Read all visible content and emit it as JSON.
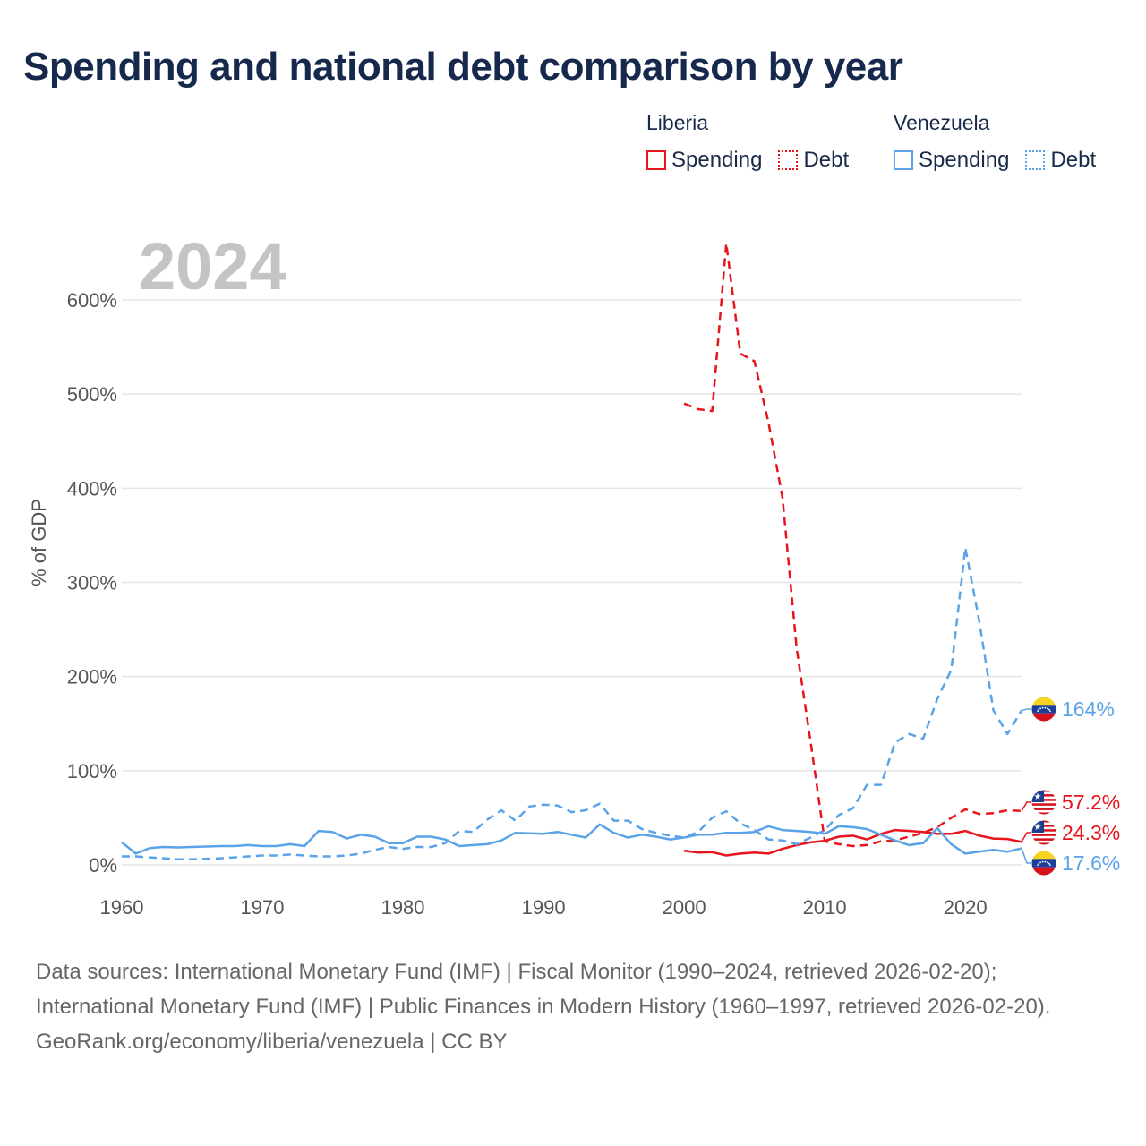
{
  "title": "Spending and national debt comparison by year",
  "legend": {
    "groups": [
      {
        "name": "Liberia",
        "color": "#e8141c",
        "spending_label": "Spending",
        "debt_label": "Debt"
      },
      {
        "name": "Venezuela",
        "color": "#5aa3e8",
        "spending_label": "Spending",
        "debt_label": "Debt"
      }
    ]
  },
  "chart_data": {
    "type": "line",
    "year_label": "2024",
    "ylabel": "% of GDP",
    "xlim": [
      1960,
      2024
    ],
    "ylim": [
      0,
      600
    ],
    "x_ticks": [
      1960,
      1970,
      1980,
      1990,
      2000,
      2010,
      2020
    ],
    "x_tick_labels": [
      "1960",
      "1970",
      "1980",
      "1990",
      "2000",
      "2010",
      "2020"
    ],
    "y_ticks": [
      0,
      100,
      200,
      300,
      400,
      500,
      600
    ],
    "y_tick_labels": [
      "0%",
      "100%",
      "200%",
      "300%",
      "400%",
      "500%",
      "600%"
    ],
    "series": [
      {
        "name": "Liberia Spending",
        "country": "Liberia",
        "kind": "spending",
        "color": "#e8141c",
        "dash": "solid",
        "start": 2000,
        "values": [
          15,
          13,
          13.5,
          10,
          12,
          13,
          12,
          17,
          21,
          24,
          25.5,
          30,
          31,
          27,
          33,
          37,
          36,
          35,
          33,
          33,
          36,
          31,
          28,
          27.5,
          24.3
        ],
        "end_label": "24.3%",
        "flag": "liberia"
      },
      {
        "name": "Liberia Debt",
        "country": "Liberia",
        "kind": "debt",
        "color": "#e8141c",
        "dash": "dashed",
        "start": 2000,
        "values": [
          490,
          484,
          482,
          660,
          543,
          535,
          470,
          390,
          230,
          130,
          25,
          22,
          20,
          21,
          25,
          26,
          30,
          34,
          40,
          50,
          59,
          54,
          55,
          58,
          57.2
        ],
        "end_label": "57.2%",
        "flag": "liberia"
      },
      {
        "name": "Venezuela Spending",
        "country": "Venezuela",
        "kind": "spending",
        "color": "#5aa3e8",
        "dash": "solid",
        "start": 1960,
        "values": [
          24,
          12,
          18,
          19,
          18.5,
          19,
          19.5,
          20,
          20,
          21,
          20,
          20,
          22,
          20,
          36,
          35,
          28,
          32,
          30,
          23,
          23,
          30,
          30,
          27,
          20,
          21,
          22,
          26,
          34,
          33.5,
          33,
          35,
          32,
          29,
          43,
          34,
          29,
          32,
          30,
          27,
          29,
          32,
          32,
          34,
          34,
          35,
          41,
          37,
          36,
          35,
          33,
          41,
          40,
          38,
          32,
          26,
          21,
          23,
          39,
          22,
          12,
          14,
          16,
          14,
          17.6
        ],
        "end_label": "17.6%",
        "flag": "venezuela"
      },
      {
        "name": "Venezuela Debt",
        "country": "Venezuela",
        "kind": "debt",
        "color": "#5aa3e8",
        "dash": "dashed",
        "start": 1960,
        "values": [
          9,
          9,
          8,
          7,
          6,
          6,
          6.5,
          7,
          8,
          9,
          10,
          10,
          11,
          10,
          9,
          9,
          10,
          12,
          16,
          19,
          17,
          19,
          19,
          23,
          36,
          35,
          48,
          58,
          47,
          62,
          64,
          63,
          56,
          58,
          65,
          47,
          47,
          38,
          34,
          31,
          29,
          35,
          50,
          57,
          44,
          37,
          27,
          26,
          22,
          29,
          37,
          53,
          60,
          85,
          85,
          130,
          139,
          134,
          176,
          207,
          337,
          258,
          164,
          139,
          164
        ],
        "end_label": "164%",
        "flag": "venezuela"
      }
    ]
  },
  "footer": {
    "sources": "Data sources: International Monetary Fund (IMF) | Fiscal Monitor (1990–2024, retrieved 2026-02-20); International Monetary Fund (IMF) | Public Finances in Modern History (1960–1997, retrieved 2026-02-20).",
    "credit": "GeoRank.org/economy/liberia/venezuela | CC BY"
  }
}
